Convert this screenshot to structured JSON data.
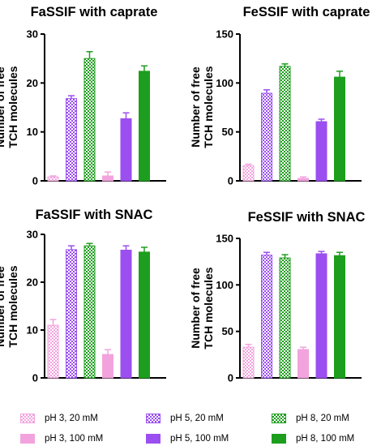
{
  "colors": {
    "pink": "#f2a3dd",
    "purple": "#9b4ff0",
    "green": "#1e9e1e"
  },
  "legend": [
    {
      "label": "pH 3, 20 mM",
      "color": "#f2a3dd",
      "pattern": "checker"
    },
    {
      "label": "pH 5, 20 mM",
      "color": "#9b4ff0",
      "pattern": "checker"
    },
    {
      "label": "pH 8, 20 mM",
      "color": "#1e9e1e",
      "pattern": "checker"
    },
    {
      "label": "pH 3, 100 mM",
      "color": "#f2a3dd",
      "pattern": "solid"
    },
    {
      "label": "pH 5, 100 mM",
      "color": "#9b4ff0",
      "pattern": "solid"
    },
    {
      "label": "pH 8, 100 mM",
      "color": "#1e9e1e",
      "pattern": "solid"
    }
  ],
  "chart_data": [
    {
      "type": "bar",
      "title": "FaSSIF with caprate",
      "ylabel": "Number of free TCH molecules",
      "ylim": [
        0,
        30
      ],
      "yticks": [
        0,
        10,
        20,
        30
      ],
      "categories": [
        "pH 3, 20 mM",
        "pH 5, 20 mM",
        "pH 8, 20 mM",
        "pH 3, 100 mM",
        "pH 5, 100 mM",
        "pH 8, 100 mM"
      ],
      "values": [
        0.8,
        16.8,
        25.0,
        1.0,
        12.7,
        22.4
      ],
      "errors": [
        0.2,
        0.6,
        1.4,
        0.8,
        1.2,
        1.1
      ]
    },
    {
      "type": "bar",
      "title": "FeSSIF with caprate",
      "ylabel": "Number of free TCH molecules",
      "ylim": [
        0,
        150
      ],
      "yticks": [
        0,
        50,
        100,
        150
      ],
      "categories": [
        "pH 3, 20 mM",
        "pH 5, 20 mM",
        "pH 8, 20 mM",
        "pH 3, 100 mM",
        "pH 5, 100 mM",
        "pH 8, 100 mM"
      ],
      "values": [
        15.5,
        89.5,
        117.0,
        2.5,
        60.5,
        106.0
      ],
      "errors": [
        1.5,
        3.5,
        2.5,
        1.5,
        2.5,
        6.0
      ]
    },
    {
      "type": "bar",
      "title": "FaSSIF with SNAC",
      "ylabel": "Number of free TCH molecules",
      "ylim": [
        0,
        30
      ],
      "yticks": [
        0,
        10,
        20,
        30
      ],
      "categories": [
        "pH 3, 20 mM",
        "pH 5, 20 mM",
        "pH 8, 20 mM",
        "pH 3, 100 mM",
        "pH 5, 100 mM",
        "pH 8, 100 mM"
      ],
      "values": [
        11.0,
        26.8,
        27.6,
        4.9,
        26.7,
        26.3
      ],
      "errors": [
        1.2,
        0.8,
        0.5,
        1.0,
        0.9,
        1.0
      ]
    },
    {
      "type": "bar",
      "title": "FeSSIF with SNAC",
      "ylabel": "Number of free TCH molecules",
      "ylim": [
        0,
        150
      ],
      "yticks": [
        0,
        50,
        100,
        150
      ],
      "categories": [
        "pH 3, 20 mM",
        "pH 5, 20 mM",
        "pH 8, 20 mM",
        "pH 3, 100 mM",
        "pH 5, 100 mM",
        "pH 8, 100 mM"
      ],
      "values": [
        33.0,
        132.0,
        129.0,
        30.5,
        133.5,
        131.5
      ],
      "errors": [
        3.0,
        3.0,
        3.5,
        2.5,
        2.5,
        3.5
      ]
    }
  ]
}
